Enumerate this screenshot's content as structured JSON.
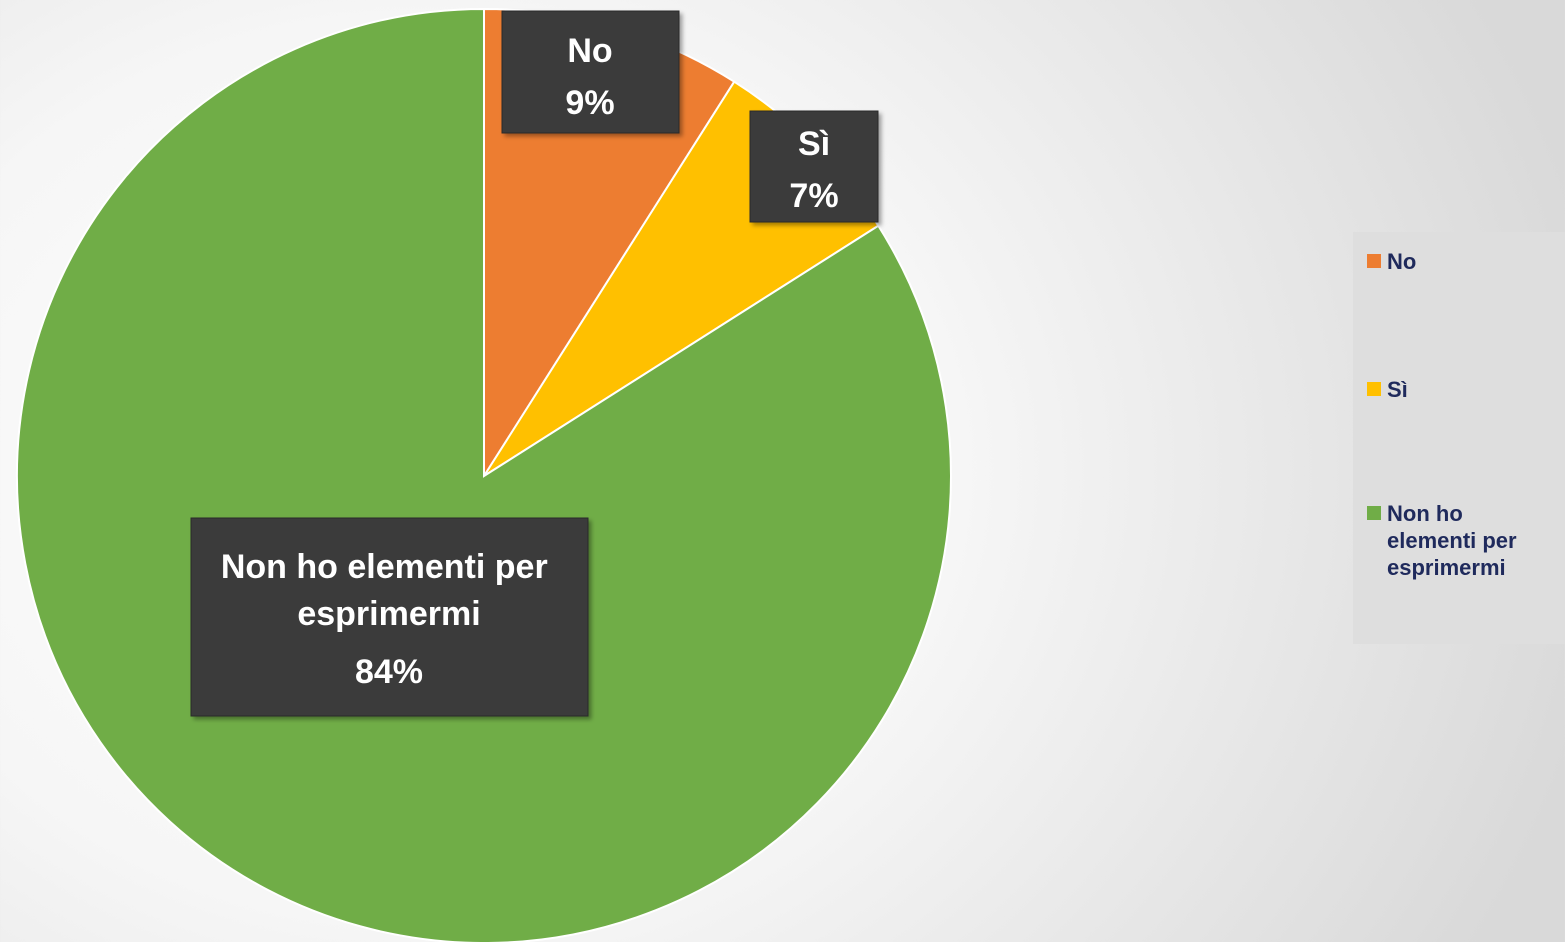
{
  "chart_data": {
    "type": "pie",
    "title": "",
    "slices": [
      {
        "label": "No",
        "value": 9,
        "value_label": "9%",
        "color": "#ED7D31"
      },
      {
        "label": "Sì",
        "value": 7,
        "value_label": "7%",
        "color": "#FFC000"
      },
      {
        "label": "Non ho elementi per esprimermi",
        "value": 84,
        "value_label": "84%",
        "color": "#70AD47"
      }
    ],
    "start_angle_deg": 90,
    "direction": "clockwise",
    "legend_position": "right",
    "legend": {
      "items": [
        {
          "label": "No",
          "color": "#ED7D31"
        },
        {
          "label": "Sì",
          "color": "#FFC000"
        },
        {
          "label": "Non ho elementi per esprimermi",
          "color": "#70AD47"
        }
      ]
    }
  }
}
